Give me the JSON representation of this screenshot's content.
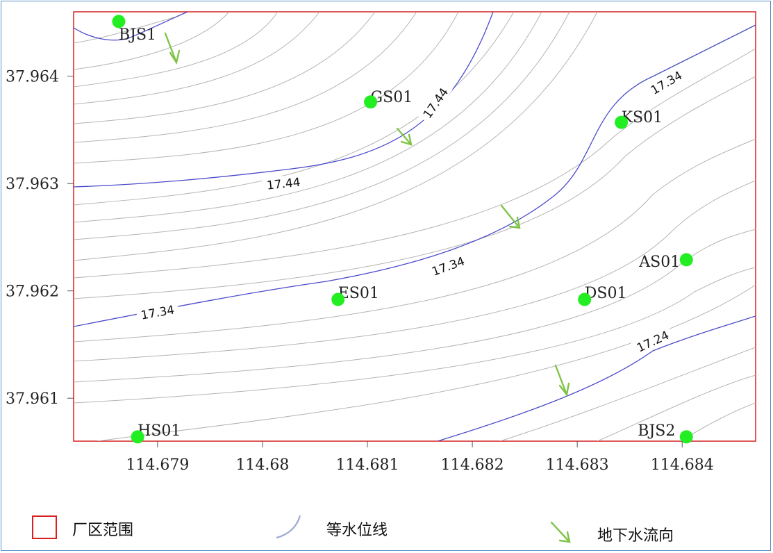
{
  "map": {
    "x_ticks": [
      "114.679",
      "114.68",
      "114.681",
      "114.682",
      "114.683",
      "114.684"
    ],
    "y_ticks": [
      "37.964",
      "37.963",
      "37.962",
      "37.961"
    ],
    "x_range": [
      114.6782,
      114.6847
    ],
    "y_range": [
      37.9606,
      37.9646
    ],
    "contour_labels": [
      {
        "value": "17.44",
        "x": 114.6802,
        "y": 37.963
      },
      {
        "value": "17.44",
        "x": 114.68165,
        "y": 37.96375
      },
      {
        "value": "17.34",
        "x": 114.679,
        "y": 37.9618
      },
      {
        "value": "17.34",
        "x": 114.68177,
        "y": 37.96223
      },
      {
        "value": "17.34",
        "x": 114.68385,
        "y": 37.96394
      },
      {
        "value": "17.24",
        "x": 114.68372,
        "y": 37.96153
      }
    ],
    "wells": [
      {
        "label": "BJS1",
        "x": 114.67863,
        "y": 37.96451
      },
      {
        "label": "GS01",
        "x": 114.68103,
        "y": 37.96376
      },
      {
        "label": "KS01",
        "x": 114.68342,
        "y": 37.96357
      },
      {
        "label": "AS01",
        "x": 114.68404,
        "y": 37.96229
      },
      {
        "label": "ES01",
        "x": 114.68072,
        "y": 37.96192
      },
      {
        "label": "DS01",
        "x": 114.68307,
        "y": 37.96192
      },
      {
        "label": "HS01",
        "x": 114.67881,
        "y": 37.96064
      },
      {
        "label": "BJS2",
        "x": 114.68404,
        "y": 37.96064
      }
    ],
    "colors": {
      "frame": "#5b8fc7",
      "boundary": "#d62020",
      "labeled_contour": "#4a4acb",
      "contour": "#b4b4b4",
      "well": "#22ee22",
      "flow_arrow": "#7fc447"
    }
  },
  "legend": {
    "boundary_label": "厂区范围",
    "contour_label": "等水位线",
    "flow_label": "地下水流向"
  }
}
